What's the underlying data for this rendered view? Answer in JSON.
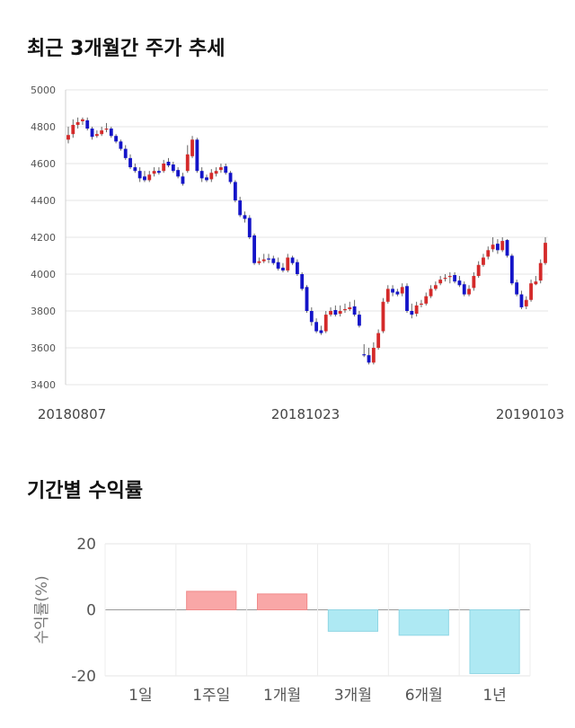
{
  "titles": {
    "price_trend": "최근 3개월간 주가 추세",
    "period_returns": "기간별 수익률"
  },
  "colors": {
    "up": "#d42a2a",
    "down": "#1414c8",
    "positive_bar": "#f9a7a7",
    "negative_bar": "#aee9f3"
  },
  "chart_data": [
    {
      "type": "candlestick",
      "title": "최근 3개월간 주가 추세",
      "ylim": [
        3400,
        5000
      ],
      "y_ticks": [
        "5000",
        "4800",
        "4600",
        "4400",
        "4200",
        "4000",
        "3800",
        "3600",
        "3400"
      ],
      "x_tick_labels": [
        "20180807",
        "20181023",
        "20190103"
      ],
      "grid": true,
      "closes": [
        4755,
        4810,
        4825,
        4840,
        4790,
        4745,
        4760,
        4780,
        4790,
        4750,
        4720,
        4680,
        4630,
        4580,
        4560,
        4520,
        4510,
        4540,
        4560,
        4550,
        4600,
        4590,
        4560,
        4530,
        4490,
        4650,
        4730,
        4560,
        4520,
        4510,
        4550,
        4560,
        4580,
        4550,
        4500,
        4400,
        4320,
        4300,
        4200,
        4060,
        4070,
        4080,
        4080,
        4060,
        4030,
        4020,
        4090,
        4060,
        4000,
        3920,
        3800,
        3740,
        3690,
        3680,
        3780,
        3800,
        3780,
        3800,
        3810,
        3820,
        3780,
        3720,
        3560,
        3520,
        3600,
        3680,
        3850,
        3920,
        3900,
        3890,
        3930,
        3800,
        3780,
        3830,
        3840,
        3880,
        3920,
        3940,
        3970,
        3980,
        3990,
        3960,
        3940,
        3890,
        3920,
        3990,
        4050,
        4090,
        4130,
        4160,
        4130,
        4180,
        4100,
        3950,
        3890,
        3820,
        3860,
        3950,
        3960,
        4060,
        4170
      ],
      "opens": [
        4730,
        4760,
        4810,
        4830,
        4835,
        4790,
        4750,
        4760,
        4785,
        4790,
        4750,
        4720,
        4680,
        4630,
        4580,
        4560,
        4530,
        4510,
        4545,
        4560,
        4560,
        4610,
        4595,
        4565,
        4530,
        4560,
        4640,
        4730,
        4560,
        4525,
        4515,
        4545,
        4565,
        4585,
        4550,
        4500,
        4400,
        4320,
        4305,
        4210,
        4060,
        4070,
        4085,
        4085,
        4065,
        4035,
        4020,
        4090,
        4065,
        4000,
        3930,
        3800,
        3740,
        3695,
        3690,
        3780,
        3805,
        3785,
        3805,
        3810,
        3825,
        3780,
        3565,
        3560,
        3520,
        3600,
        3690,
        3850,
        3920,
        3905,
        3895,
        3935,
        3800,
        3785,
        3835,
        3840,
        3880,
        3920,
        3950,
        3975,
        3990,
        3995,
        3965,
        3945,
        3890,
        3925,
        3990,
        4050,
        4095,
        4135,
        4165,
        4130,
        4185,
        4100,
        3955,
        3890,
        3825,
        3860,
        3945,
        3965,
        4060
      ],
      "highs": [
        4800,
        4840,
        4850,
        4850,
        4850,
        4800,
        4780,
        4800,
        4820,
        4800,
        4760,
        4730,
        4700,
        4650,
        4600,
        4580,
        4560,
        4560,
        4580,
        4580,
        4620,
        4630,
        4610,
        4580,
        4550,
        4700,
        4750,
        4740,
        4580,
        4540,
        4570,
        4580,
        4600,
        4600,
        4560,
        4510,
        4420,
        4340,
        4320,
        4220,
        4090,
        4110,
        4110,
        4100,
        4090,
        4060,
        4110,
        4100,
        4080,
        4010,
        3940,
        3820,
        3760,
        3720,
        3800,
        3820,
        3830,
        3830,
        3840,
        3850,
        3860,
        3800,
        3620,
        3600,
        3630,
        3700,
        3870,
        3940,
        3940,
        3920,
        3950,
        3950,
        3840,
        3850,
        3860,
        3900,
        3940,
        3960,
        3990,
        4000,
        4010,
        4010,
        3990,
        3960,
        3940,
        4010,
        4070,
        4110,
        4150,
        4200,
        4190,
        4200,
        4190,
        4110,
        3970,
        3910,
        3880,
        3970,
        3990,
        4080,
        4200
      ],
      "lows": [
        4710,
        4740,
        4790,
        4810,
        4780,
        4730,
        4740,
        4750,
        4770,
        4740,
        4710,
        4670,
        4620,
        4570,
        4550,
        4500,
        4500,
        4500,
        4530,
        4540,
        4550,
        4580,
        4550,
        4520,
        4480,
        4550,
        4630,
        4550,
        4500,
        4500,
        4500,
        4530,
        4550,
        4540,
        4490,
        4390,
        4310,
        4280,
        4190,
        4050,
        4050,
        4060,
        4060,
        4050,
        4020,
        4010,
        4010,
        4050,
        3990,
        3910,
        3790,
        3720,
        3680,
        3670,
        3680,
        3770,
        3770,
        3770,
        3790,
        3800,
        3770,
        3710,
        3550,
        3510,
        3510,
        3590,
        3680,
        3840,
        3880,
        3880,
        3880,
        3790,
        3760,
        3770,
        3820,
        3830,
        3870,
        3910,
        3940,
        3960,
        3950,
        3950,
        3930,
        3880,
        3880,
        3910,
        3980,
        4040,
        4080,
        4120,
        4110,
        4120,
        4090,
        3940,
        3880,
        3810,
        3810,
        3850,
        3940,
        3950,
        4050
      ]
    },
    {
      "type": "bar",
      "title": "기간별 수익률",
      "categories": [
        "1일",
        "1주일",
        "1개월",
        "3개월",
        "6개월",
        "1년"
      ],
      "values": [
        0,
        5.6,
        4.8,
        -6.5,
        -7.7,
        -19.3
      ],
      "ylabel": "수익률(%)",
      "ylim": [
        -20,
        20
      ],
      "y_ticks": [
        "20",
        "0",
        "-20"
      ],
      "grid": true
    }
  ]
}
